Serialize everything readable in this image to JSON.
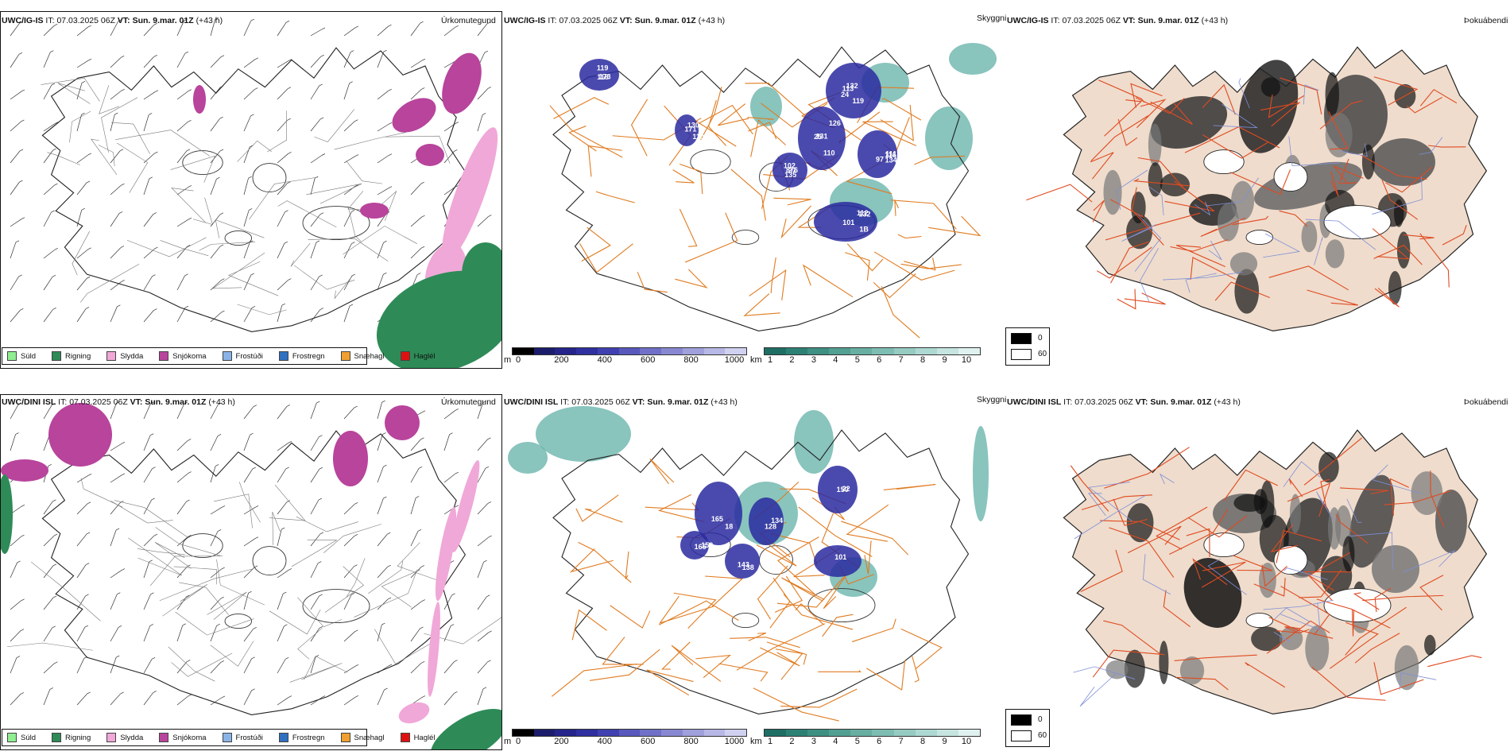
{
  "rows": [
    {
      "model": "UWC/IG-IS",
      "it_label": "IT:",
      "it_time": "07.03.2025 06Z",
      "vt_label": "VT:",
      "vt_time": "Sun. 9.mar. 01Z",
      "lead": "(+43 h)",
      "cloud_labels": [
        "131",
        "132",
        "97",
        "102",
        "112",
        "119",
        "130",
        "126",
        "113",
        "116",
        "27",
        "132",
        "118",
        "110",
        "25",
        "119",
        "111",
        "135",
        "101",
        "173",
        "171",
        "110",
        "24",
        "134",
        "876",
        "1B"
      ]
    },
    {
      "model": "UWC/DINI ISL",
      "it_label": "IT:",
      "it_time": "07.03.2025 06Z",
      "vt_label": "VT:",
      "vt_time": "Sun. 9.mar. 01Z",
      "lead": "(+43 h)",
      "cloud_labels": [
        "22",
        "18",
        "134",
        "165",
        "138",
        "101",
        "150",
        "165",
        "128",
        "159",
        "143"
      ]
    }
  ],
  "panel_titles": {
    "precip": "Úrkomutegund",
    "cloud": "Skyggni",
    "fog": "Þokuábendi"
  },
  "precip_legend": [
    {
      "label": "Súld",
      "color": "#90ee90"
    },
    {
      "label": "Rigning",
      "color": "#2e8b57"
    },
    {
      "label": "Slydda",
      "color": "#f0a8d8"
    },
    {
      "label": "Snjókoma",
      "color": "#b8449c"
    },
    {
      "label": "Frostúði",
      "color": "#8ab4e8"
    },
    {
      "label": "Frostregn",
      "color": "#3070c0"
    },
    {
      "label": "Snæhagl",
      "color": "#f0a030"
    },
    {
      "label": "Haglél",
      "color": "#e01010"
    }
  ],
  "colorbars": {
    "ceiling": {
      "unit": "m",
      "ticks": [
        "0",
        "200",
        "400",
        "600",
        "800",
        "1000"
      ]
    },
    "visibility": {
      "unit": "km",
      "ticks": [
        "1",
        "2",
        "3",
        "4",
        "5",
        "6",
        "7",
        "8",
        "9",
        "10"
      ]
    }
  },
  "fog_legend": {
    "black": "0",
    "white": "60"
  },
  "colors": {
    "snow": "#b8449c",
    "sleet": "#f0a8d8",
    "rain": "#2e8b57",
    "cloud_blue": "#2a2aa0",
    "vis_teal": "#4aa59a",
    "roads": "#e07b20",
    "fog_land": "#efdccc",
    "fog_roads": "#e04a20"
  }
}
